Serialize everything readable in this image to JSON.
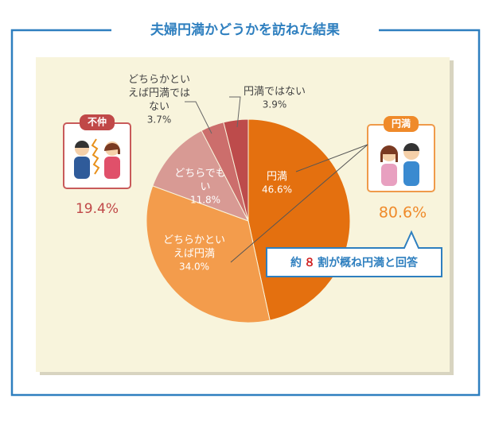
{
  "chart_data": {
    "type": "pie",
    "title": "夫婦円満かどうかを訪ねた結果",
    "categories": [
      "円満",
      "どちらかといえば円満",
      "どちらでもない",
      "どちらかといえば円満ではない",
      "円満ではない"
    ],
    "values": [
      46.6,
      34.0,
      11.8,
      3.7,
      3.9
    ],
    "value_labels": [
      "46.6%",
      "34.0%",
      "11.8%",
      "3.7%",
      "3.9%"
    ],
    "colors": [
      "#e4700f",
      "#f39c4c",
      "#d89a94",
      "#cc6e6c",
      "#bd4b4b"
    ],
    "bad_card": {
      "label": "不仲",
      "total": "19.4%"
    },
    "good_card": {
      "label": "円満",
      "total": "80.6%"
    },
    "callout": {
      "before": "約",
      "highlight": "８",
      "after": "割が概ね円満と回答"
    }
  }
}
